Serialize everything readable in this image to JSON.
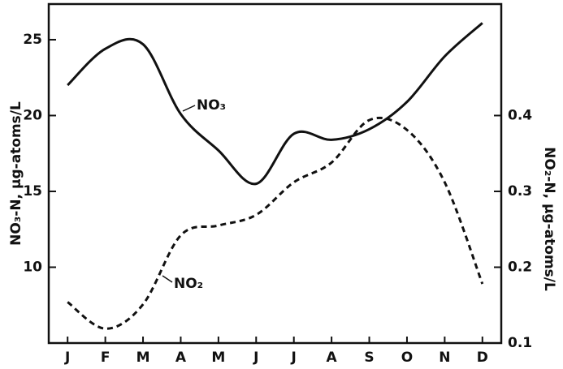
{
  "chart_data": {
    "type": "line",
    "categories": [
      "J",
      "F",
      "M",
      "A",
      "M",
      "J",
      "J",
      "A",
      "S",
      "O",
      "N",
      "D"
    ],
    "y_label": "NO₃-N, μg-atoms/L",
    "y2_label": "NO₂-N, μg-atoms/L",
    "ylim": [
      5,
      27.35
    ],
    "yticks": [
      10,
      15,
      20,
      25
    ],
    "y2lim": [
      0.1,
      0.547
    ],
    "y2ticks": [
      0.1,
      0.2,
      0.3,
      0.4
    ],
    "series": [
      {
        "name": "NO₃",
        "color": "#111111",
        "line_style": "solid",
        "values": [
          22.0,
          24.4,
          24.7,
          20.1,
          17.7,
          15.5,
          18.8,
          18.4,
          19.1,
          20.9,
          23.9,
          26.1
        ]
      },
      {
        "name": "NO₂",
        "color": "#111111",
        "line_style": "dashed",
        "axis": "y2",
        "values": [
          0.154,
          0.119,
          0.151,
          0.242,
          0.255,
          0.269,
          0.312,
          0.338,
          0.394,
          0.381,
          0.312,
          0.178
        ]
      }
    ]
  }
}
